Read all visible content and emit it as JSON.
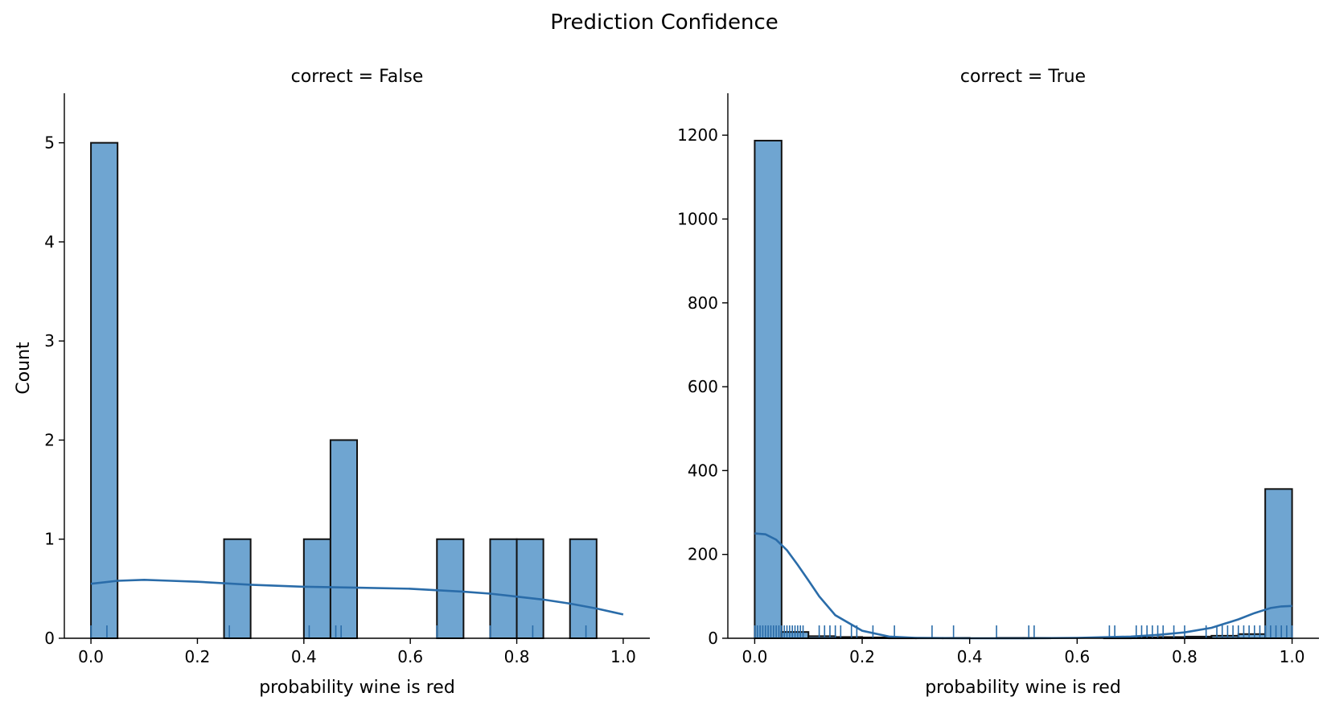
{
  "figure": {
    "title": "Prediction Confidence"
  },
  "chart_data": [
    {
      "type": "bar",
      "subtitle": "correct = False",
      "xlabel": "probability wine is red",
      "ylabel": "Count",
      "xlim": [
        -0.05,
        1.05
      ],
      "ylim": [
        0,
        5.5
      ],
      "xticks": [
        0.0,
        0.2,
        0.4,
        0.6,
        0.8,
        1.0
      ],
      "xtick_labels": [
        "0.0",
        "0.2",
        "0.4",
        "0.6",
        "0.8",
        "1.0"
      ],
      "yticks": [
        0,
        1,
        2,
        3,
        4,
        5
      ],
      "ytick_labels": [
        "0",
        "1",
        "2",
        "3",
        "4",
        "5"
      ],
      "bin_width": 0.05,
      "bins": [
        {
          "x0": 0.0,
          "count": 5
        },
        {
          "x0": 0.25,
          "count": 1
        },
        {
          "x0": 0.4,
          "count": 1
        },
        {
          "x0": 0.45,
          "count": 2
        },
        {
          "x0": 0.65,
          "count": 1
        },
        {
          "x0": 0.75,
          "count": 1
        },
        {
          "x0": 0.8,
          "count": 1
        },
        {
          "x0": 0.9,
          "count": 1
        }
      ],
      "kde": {
        "x": [
          0.0,
          0.05,
          0.1,
          0.15,
          0.2,
          0.3,
          0.4,
          0.5,
          0.6,
          0.7,
          0.75,
          0.8,
          0.85,
          0.9,
          0.95,
          1.0
        ],
        "y": [
          0.55,
          0.58,
          0.59,
          0.58,
          0.57,
          0.54,
          0.52,
          0.51,
          0.5,
          0.47,
          0.45,
          0.42,
          0.39,
          0.35,
          0.3,
          0.24
        ]
      },
      "rug": [
        0.0,
        0.03,
        0.26,
        0.41,
        0.46,
        0.47,
        0.65,
        0.75,
        0.83,
        0.93
      ]
    },
    {
      "type": "bar",
      "subtitle": "correct = True",
      "xlabel": "probability wine is red",
      "ylabel": "",
      "xlim": [
        -0.05,
        1.05
      ],
      "ylim": [
        0,
        1300
      ],
      "xticks": [
        0.0,
        0.2,
        0.4,
        0.6,
        0.8,
        1.0
      ],
      "xtick_labels": [
        "0.0",
        "0.2",
        "0.4",
        "0.6",
        "0.8",
        "1.0"
      ],
      "yticks": [
        0,
        200,
        400,
        600,
        800,
        1000,
        1200
      ],
      "ytick_labels": [
        "0",
        "200",
        "400",
        "600",
        "800",
        "1000",
        "1200"
      ],
      "bin_width": 0.05,
      "bins": [
        {
          "x0": 0.0,
          "count": 1187
        },
        {
          "x0": 0.05,
          "count": 15
        },
        {
          "x0": 0.1,
          "count": 5
        },
        {
          "x0": 0.15,
          "count": 3
        },
        {
          "x0": 0.2,
          "count": 2
        },
        {
          "x0": 0.25,
          "count": 1
        },
        {
          "x0": 0.3,
          "count": 1
        },
        {
          "x0": 0.35,
          "count": 1
        },
        {
          "x0": 0.45,
          "count": 1
        },
        {
          "x0": 0.5,
          "count": 1
        },
        {
          "x0": 0.65,
          "count": 1
        },
        {
          "x0": 0.7,
          "count": 2
        },
        {
          "x0": 0.75,
          "count": 3
        },
        {
          "x0": 0.8,
          "count": 4
        },
        {
          "x0": 0.85,
          "count": 6
        },
        {
          "x0": 0.9,
          "count": 10
        },
        {
          "x0": 0.95,
          "count": 356
        }
      ],
      "kde": {
        "x": [
          0.0,
          0.02,
          0.04,
          0.06,
          0.08,
          0.1,
          0.12,
          0.15,
          0.2,
          0.25,
          0.3,
          0.4,
          0.5,
          0.6,
          0.7,
          0.75,
          0.8,
          0.85,
          0.9,
          0.93,
          0.96,
          0.98,
          1.0
        ],
        "y": [
          250,
          248,
          235,
          210,
          175,
          138,
          100,
          55,
          18,
          4,
          1,
          0,
          0,
          1,
          4,
          8,
          14,
          25,
          45,
          60,
          72,
          76,
          77
        ],
        "thin_outline_y": [
          0,
          0,
          0,
          0,
          0,
          0,
          0,
          0,
          0,
          0,
          0,
          0,
          0,
          0,
          0,
          0,
          0,
          0,
          0,
          0,
          0,
          0,
          0
        ]
      },
      "rug": [
        0.0,
        0.005,
        0.01,
        0.015,
        0.02,
        0.025,
        0.03,
        0.035,
        0.04,
        0.045,
        0.05,
        0.055,
        0.06,
        0.065,
        0.07,
        0.075,
        0.08,
        0.085,
        0.09,
        0.12,
        0.13,
        0.14,
        0.15,
        0.16,
        0.18,
        0.19,
        0.22,
        0.26,
        0.33,
        0.37,
        0.45,
        0.51,
        0.52,
        0.66,
        0.67,
        0.71,
        0.72,
        0.73,
        0.74,
        0.75,
        0.76,
        0.78,
        0.8,
        0.84,
        0.86,
        0.87,
        0.88,
        0.89,
        0.9,
        0.91,
        0.92,
        0.93,
        0.94,
        0.95,
        0.96,
        0.97,
        0.98,
        0.99,
        1.0
      ]
    }
  ]
}
